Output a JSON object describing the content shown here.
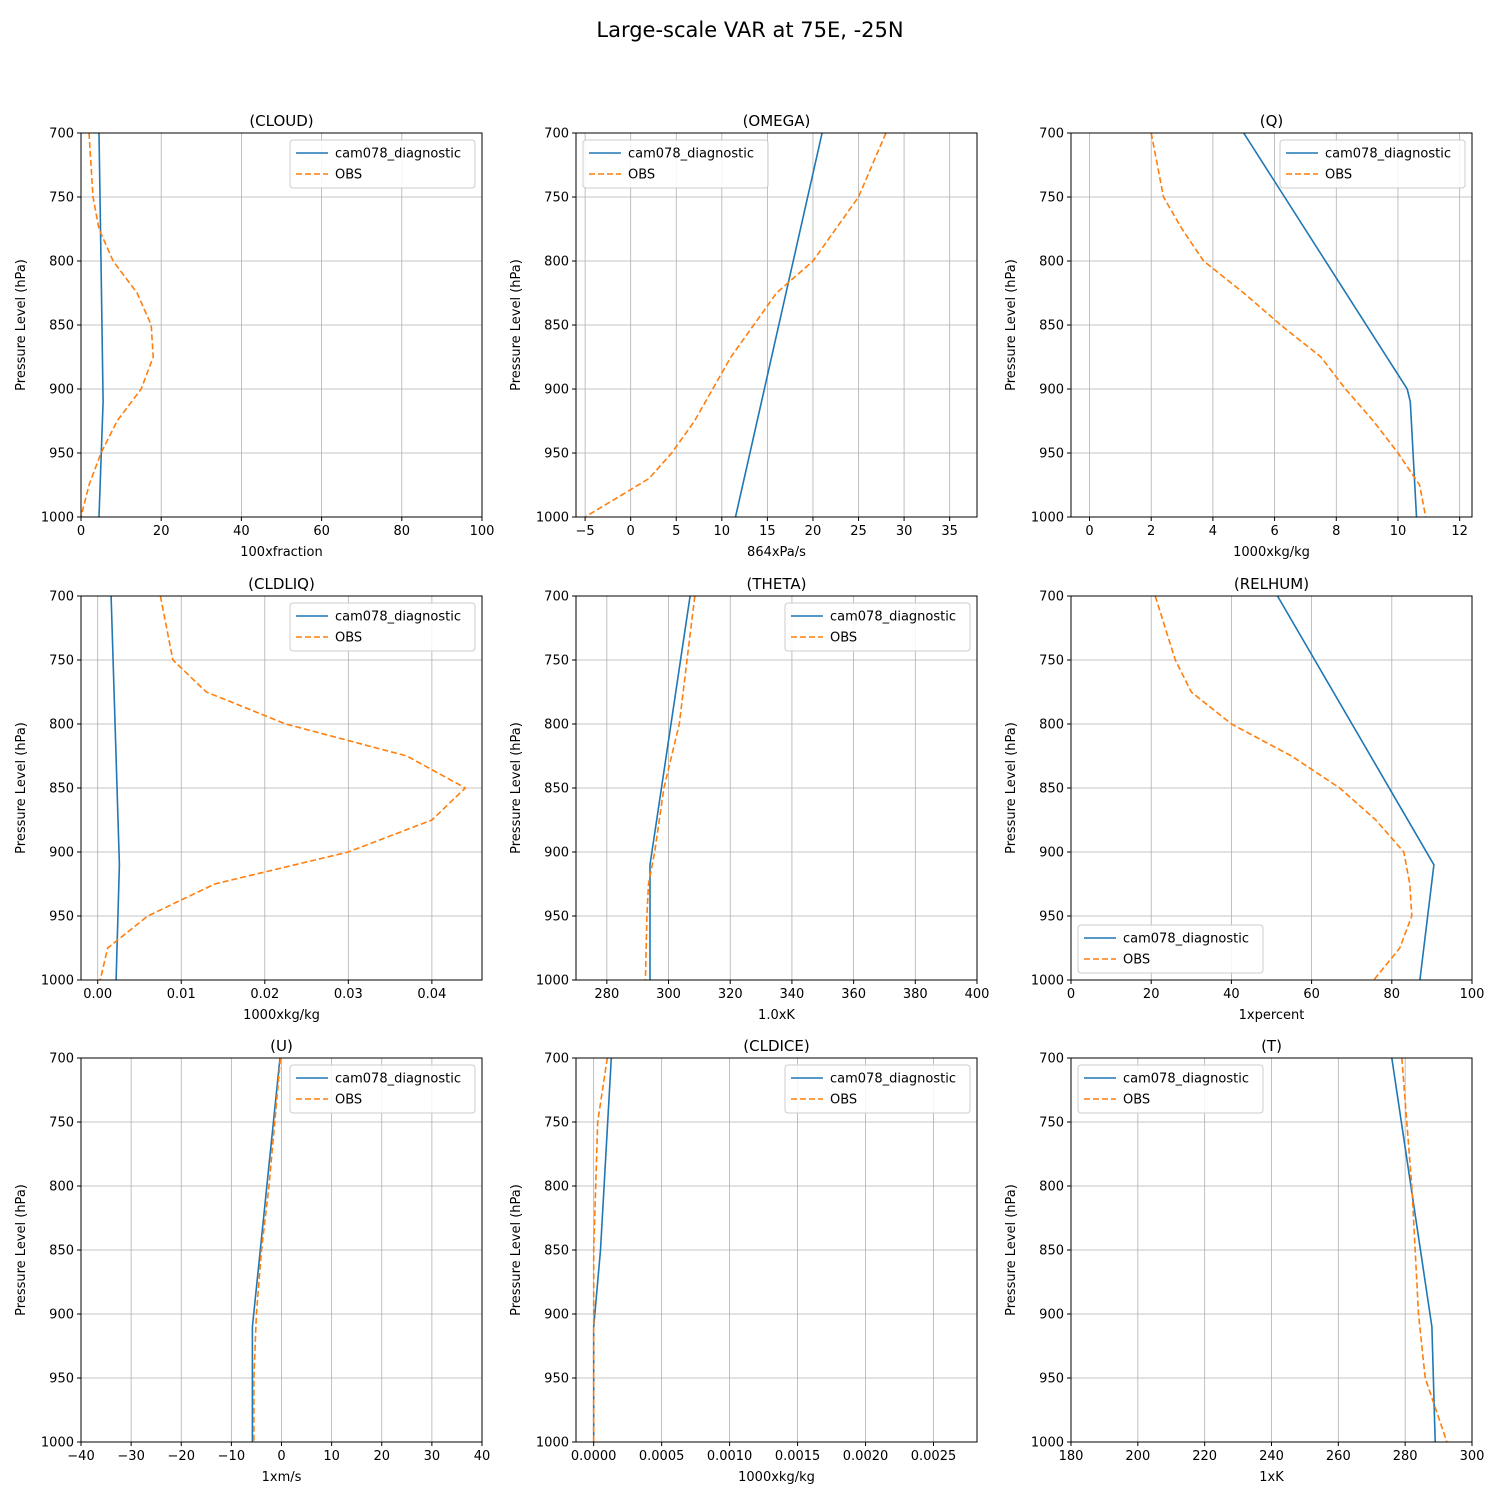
{
  "figure": {
    "title": "Large-scale VAR at 75E, -25N"
  },
  "colors": {
    "model": "#1f77b4",
    "obs": "#ff7f0e",
    "grid": "#b0b0b0",
    "axes": "#000000"
  },
  "chart_data": [
    {
      "type": "line",
      "title": "(CLOUD)",
      "xlabel": "100xfraction",
      "ylabel": "Pressure Level (hPa)",
      "xlim": [
        0,
        100
      ],
      "ylim": [
        1000,
        700
      ],
      "grid": true,
      "legend": "upper right",
      "xticks": [
        0,
        20,
        40,
        60,
        80,
        100
      ],
      "xtick_labels": [
        "0",
        "20",
        "40",
        "60",
        "80",
        "100"
      ],
      "yticks": [
        700,
        750,
        800,
        850,
        900,
        950,
        1000
      ],
      "ytick_labels": [
        "700",
        "750",
        "800",
        "850",
        "900",
        "950",
        "1000"
      ],
      "series": [
        {
          "name": "cam078_diagnostic",
          "style": "solid",
          "points": [
            [
              4.5,
              700
            ],
            [
              5.0,
              800
            ],
            [
              5.5,
              910
            ],
            [
              4.5,
              1000
            ]
          ]
        },
        {
          "name": "OBS",
          "style": "dashed",
          "points": [
            [
              2,
              700
            ],
            [
              3,
              750
            ],
            [
              4.5,
              775
            ],
            [
              8,
              800
            ],
            [
              14,
              825
            ],
            [
              17.5,
              850
            ],
            [
              18,
              875
            ],
            [
              15,
              900
            ],
            [
              9,
              925
            ],
            [
              5,
              950
            ],
            [
              2,
              975
            ],
            [
              0,
              1000
            ]
          ]
        }
      ]
    },
    {
      "type": "line",
      "title": "(OMEGA)",
      "xlabel": "864xPa/s",
      "ylabel": "Pressure Level (hPa)",
      "xlim": [
        -6,
        38
      ],
      "ylim": [
        1000,
        700
      ],
      "grid": true,
      "legend": "upper left",
      "xticks": [
        -5,
        0,
        5,
        10,
        15,
        20,
        25,
        30,
        35
      ],
      "xtick_labels": [
        "−5",
        "0",
        "5",
        "10",
        "15",
        "20",
        "25",
        "30",
        "35"
      ],
      "yticks": [
        700,
        750,
        800,
        850,
        900,
        950,
        1000
      ],
      "ytick_labels": [
        "700",
        "750",
        "800",
        "850",
        "900",
        "950",
        "1000"
      ],
      "series": [
        {
          "name": "cam078_diagnostic",
          "style": "solid",
          "points": [
            [
              21,
              700
            ],
            [
              11.5,
              1000
            ]
          ]
        },
        {
          "name": "OBS",
          "style": "dashed",
          "points": [
            [
              28,
              700
            ],
            [
              25,
              750
            ],
            [
              22.5,
              775
            ],
            [
              20,
              800
            ],
            [
              16,
              825
            ],
            [
              13.5,
              850
            ],
            [
              11,
              875
            ],
            [
              9,
              900
            ],
            [
              7,
              925
            ],
            [
              4.5,
              950
            ],
            [
              2,
              970
            ],
            [
              -5,
              1000
            ]
          ]
        }
      ]
    },
    {
      "type": "line",
      "title": "(Q)",
      "xlabel": "1000xkg/kg",
      "ylabel": "Pressure Level (hPa)",
      "xlim": [
        -0.6,
        12.4
      ],
      "ylim": [
        1000,
        700
      ],
      "grid": true,
      "legend": "upper right",
      "xticks": [
        0,
        2,
        4,
        6,
        8,
        10,
        12
      ],
      "xtick_labels": [
        "0",
        "2",
        "4",
        "6",
        "8",
        "10",
        "12"
      ],
      "yticks": [
        700,
        750,
        800,
        850,
        900,
        950,
        1000
      ],
      "ytick_labels": [
        "700",
        "750",
        "800",
        "850",
        "900",
        "950",
        "1000"
      ],
      "series": [
        {
          "name": "cam078_diagnostic",
          "style": "solid",
          "points": [
            [
              5,
              700
            ],
            [
              10.3,
              900
            ],
            [
              10.4,
              910
            ],
            [
              10.6,
              1000
            ]
          ]
        },
        {
          "name": "OBS",
          "style": "dashed",
          "points": [
            [
              2,
              700
            ],
            [
              2.4,
              750
            ],
            [
              3,
              775
            ],
            [
              3.7,
              800
            ],
            [
              5,
              825
            ],
            [
              6.2,
              850
            ],
            [
              7.5,
              875
            ],
            [
              8.3,
              900
            ],
            [
              9.2,
              925
            ],
            [
              10,
              950
            ],
            [
              10.7,
              975
            ],
            [
              10.9,
              1000
            ]
          ]
        }
      ]
    },
    {
      "type": "line",
      "title": "(CLDLIQ)",
      "xlabel": "1000xkg/kg",
      "ylabel": "Pressure Level (hPa)",
      "xlim": [
        -0.002,
        0.046
      ],
      "ylim": [
        1000,
        700
      ],
      "grid": true,
      "legend": "upper right",
      "xticks": [
        0,
        0.01,
        0.02,
        0.03,
        0.04
      ],
      "xtick_labels": [
        "0.00",
        "0.01",
        "0.02",
        "0.03",
        "0.04"
      ],
      "yticks": [
        700,
        750,
        800,
        850,
        900,
        950,
        1000
      ],
      "ytick_labels": [
        "700",
        "750",
        "800",
        "850",
        "900",
        "950",
        "1000"
      ],
      "series": [
        {
          "name": "cam078_diagnostic",
          "style": "solid",
          "points": [
            [
              0.0016,
              700
            ],
            [
              0.0026,
              910
            ],
            [
              0.0022,
              1000
            ]
          ]
        },
        {
          "name": "OBS",
          "style": "dashed",
          "points": [
            [
              0.0075,
              700
            ],
            [
              0.009,
              750
            ],
            [
              0.013,
              775
            ],
            [
              0.0225,
              800
            ],
            [
              0.037,
              825
            ],
            [
              0.044,
              850
            ],
            [
              0.04,
              875
            ],
            [
              0.03,
              900
            ],
            [
              0.014,
              925
            ],
            [
              0.006,
              950
            ],
            [
              0.0012,
              975
            ],
            [
              0.0003,
              1000
            ]
          ]
        }
      ]
    },
    {
      "type": "line",
      "title": "(THETA)",
      "xlabel": "1.0xK",
      "ylabel": "Pressure Level (hPa)",
      "xlim": [
        270,
        400
      ],
      "ylim": [
        1000,
        700
      ],
      "grid": true,
      "legend": "upper right",
      "xticks": [
        280,
        300,
        320,
        340,
        360,
        380,
        400
      ],
      "xtick_labels": [
        "280",
        "300",
        "320",
        "340",
        "360",
        "380",
        "400"
      ],
      "yticks": [
        700,
        750,
        800,
        850,
        900,
        950,
        1000
      ],
      "ytick_labels": [
        "700",
        "750",
        "800",
        "850",
        "900",
        "950",
        "1000"
      ],
      "series": [
        {
          "name": "cam078_diagnostic",
          "style": "solid",
          "points": [
            [
              307,
              700
            ],
            [
              294,
              910
            ],
            [
              294,
              1000
            ]
          ]
        },
        {
          "name": "OBS",
          "style": "dashed",
          "points": [
            [
              308.5,
              700
            ],
            [
              306,
              750
            ],
            [
              303.5,
              800
            ],
            [
              301,
              825
            ],
            [
              298.5,
              850
            ],
            [
              297,
              875
            ],
            [
              295.5,
              900
            ],
            [
              293.5,
              925
            ],
            [
              293,
              950
            ],
            [
              292.5,
              1000
            ]
          ]
        }
      ]
    },
    {
      "type": "line",
      "title": "(RELHUM)",
      "xlabel": "1xpercent",
      "ylabel": "Pressure Level (hPa)",
      "xlim": [
        0,
        100
      ],
      "ylim": [
        1000,
        700
      ],
      "grid": true,
      "legend": "lower left",
      "xticks": [
        0,
        20,
        40,
        60,
        80,
        100
      ],
      "xtick_labels": [
        "0",
        "20",
        "40",
        "60",
        "80",
        "100"
      ],
      "yticks": [
        700,
        750,
        800,
        850,
        900,
        950,
        1000
      ],
      "ytick_labels": [
        "700",
        "750",
        "800",
        "850",
        "900",
        "950",
        "1000"
      ],
      "series": [
        {
          "name": "cam078_diagnostic",
          "style": "solid",
          "points": [
            [
              51.5,
              700
            ],
            [
              90.5,
              910
            ],
            [
              87,
              1000
            ]
          ]
        },
        {
          "name": "OBS",
          "style": "dashed",
          "points": [
            [
              21,
              700
            ],
            [
              26,
              750
            ],
            [
              30,
              775
            ],
            [
              40,
              800
            ],
            [
              55,
              825
            ],
            [
              67,
              850
            ],
            [
              76,
              875
            ],
            [
              83,
              900
            ],
            [
              84.5,
              925
            ],
            [
              85,
              950
            ],
            [
              82,
              975
            ],
            [
              75.5,
              1000
            ]
          ]
        }
      ]
    },
    {
      "type": "line",
      "title": "(U)",
      "xlabel": "1xm/s",
      "ylabel": "Pressure Level (hPa)",
      "xlim": [
        -40,
        40
      ],
      "ylim": [
        1000,
        700
      ],
      "grid": true,
      "legend": "upper right",
      "xticks": [
        -40,
        -30,
        -20,
        -10,
        0,
        10,
        20,
        30,
        40
      ],
      "xtick_labels": [
        "−40",
        "−30",
        "−20",
        "−10",
        "0",
        "10",
        "20",
        "30",
        "40"
      ],
      "yticks": [
        700,
        750,
        800,
        850,
        900,
        950,
        1000
      ],
      "ytick_labels": [
        "700",
        "750",
        "800",
        "850",
        "900",
        "950",
        "1000"
      ],
      "series": [
        {
          "name": "cam078_diagnostic",
          "style": "solid",
          "points": [
            [
              -0.3,
              700
            ],
            [
              -5.8,
              910
            ],
            [
              -5.8,
              1000
            ]
          ]
        },
        {
          "name": "OBS",
          "style": "dashed",
          "points": [
            [
              -0.2,
              700
            ],
            [
              -2.5,
              800
            ],
            [
              -4,
              850
            ],
            [
              -5,
              900
            ],
            [
              -5.5,
              950
            ],
            [
              -5.5,
              1000
            ]
          ]
        }
      ]
    },
    {
      "type": "line",
      "title": "(CLDICE)",
      "xlabel": "1000xkg/kg",
      "ylabel": "Pressure Level (hPa)",
      "xlim": [
        -0.00013,
        0.00282
      ],
      "ylim": [
        1000,
        700
      ],
      "grid": true,
      "legend": "upper right",
      "xticks": [
        0,
        0.0005,
        0.001,
        0.0015,
        0.002,
        0.0025
      ],
      "xtick_labels": [
        "0.0000",
        "0.0005",
        "0.0010",
        "0.0015",
        "0.0020",
        "0.0025"
      ],
      "yticks": [
        700,
        750,
        800,
        850,
        900,
        950,
        1000
      ],
      "ytick_labels": [
        "700",
        "750",
        "800",
        "850",
        "900",
        "950",
        "1000"
      ],
      "series": [
        {
          "name": "cam078_diagnostic",
          "style": "solid",
          "points": [
            [
              0.00013,
              700
            ],
            [
              5e-05,
              850
            ],
            [
              0.0,
              910
            ],
            [
              0.0,
              1000
            ]
          ]
        },
        {
          "name": "OBS",
          "style": "dashed",
          "points": [
            [
              0.0001,
              700
            ],
            [
              3e-05,
              750
            ],
            [
              0.0,
              850
            ],
            [
              0.0,
              1000
            ]
          ]
        }
      ]
    },
    {
      "type": "line",
      "title": "(T)",
      "xlabel": "1xK",
      "ylabel": "Pressure Level (hPa)",
      "xlim": [
        180,
        300
      ],
      "ylim": [
        1000,
        700
      ],
      "grid": true,
      "legend": "upper left",
      "xticks": [
        180,
        200,
        220,
        240,
        260,
        280,
        300
      ],
      "xtick_labels": [
        "180",
        "200",
        "220",
        "240",
        "260",
        "280",
        "300"
      ],
      "yticks": [
        700,
        750,
        800,
        850,
        900,
        950,
        1000
      ],
      "ytick_labels": [
        "700",
        "750",
        "800",
        "850",
        "900",
        "950",
        "1000"
      ],
      "series": [
        {
          "name": "cam078_diagnostic",
          "style": "solid",
          "points": [
            [
              276,
              700
            ],
            [
              288,
              910
            ],
            [
              289,
              1000
            ]
          ]
        },
        {
          "name": "OBS",
          "style": "dashed",
          "points": [
            [
              279,
              700
            ],
            [
              282,
              800
            ],
            [
              284,
              900
            ],
            [
              286,
              950
            ],
            [
              292.5,
              1000
            ]
          ]
        }
      ]
    }
  ]
}
